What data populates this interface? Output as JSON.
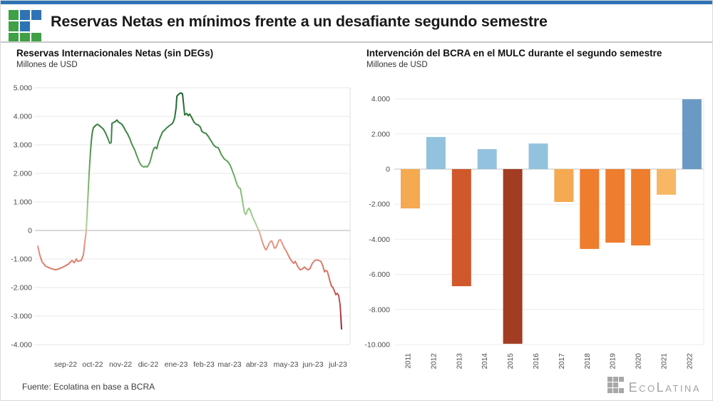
{
  "header": {
    "title": "Reservas Netas en mínimos frente a un desafiante segundo semestre",
    "top_strip_color": "#2E74B5",
    "logo": {
      "green": "#3FA046",
      "blue": "#2E74B5",
      "pattern": [
        [
          "g",
          "b",
          "b"
        ],
        [
          "g",
          "b",
          ""
        ],
        [
          "g",
          "g",
          "g"
        ]
      ]
    }
  },
  "source_note": "Fuente: Ecolatina en base a BCRA",
  "brand": {
    "seg": [
      "E",
      "co",
      "L",
      "atina"
    ],
    "color": "#a3a3a3"
  },
  "chart_data": [
    {
      "type": "line",
      "title": "Reservas Internacionales Netas (sin DEGs)",
      "subtitle": "Millones de USD",
      "ylabel": "Millones de USD",
      "ylim": [
        -4000,
        5000
      ],
      "grid": true,
      "yticks": [
        {
          "v": 5000,
          "label": "5.000"
        },
        {
          "v": 4000,
          "label": "4.000"
        },
        {
          "v": 3000,
          "label": "3.000"
        },
        {
          "v": 2000,
          "label": "2.000"
        },
        {
          "v": 1000,
          "label": "1.000"
        },
        {
          "v": 0,
          "label": "0"
        },
        {
          "v": -1000,
          "label": "-1.000"
        },
        {
          "v": -2000,
          "label": "-2.000"
        },
        {
          "v": -3000,
          "label": "-3.000"
        },
        {
          "v": -4000,
          "label": "-4.000"
        }
      ],
      "xticks": [
        {
          "pos": 39,
          "label": "sep-22"
        },
        {
          "pos": 77,
          "label": "oct-22"
        },
        {
          "pos": 116,
          "label": "nov-22"
        },
        {
          "pos": 155,
          "label": "dic-22"
        },
        {
          "pos": 194,
          "label": "ene-23"
        },
        {
          "pos": 233,
          "label": "feb-23"
        },
        {
          "pos": 269,
          "label": "mar-23"
        },
        {
          "pos": 307,
          "label": "abr-23"
        },
        {
          "pos": 348,
          "label": "may-23"
        },
        {
          "pos": 386,
          "label": "jun-23"
        },
        {
          "pos": 421,
          "label": "jul-23"
        }
      ],
      "axis_length": 426,
      "color_gradient_high_to_low": [
        [
          0.0,
          "#1f6030"
        ],
        [
          0.1,
          "#2e7639"
        ],
        [
          0.22,
          "#47904b"
        ],
        [
          0.34,
          "#6cab63"
        ],
        [
          0.46,
          "#8cc47c"
        ],
        [
          0.55,
          "#a5d18f"
        ],
        [
          0.57,
          "#a8d294"
        ],
        [
          0.59,
          "#e8a898"
        ],
        [
          0.64,
          "#e39384"
        ],
        [
          0.7,
          "#df8372"
        ],
        [
          0.78,
          "#d8705f"
        ],
        [
          0.88,
          "#c04e4e"
        ],
        [
          1.0,
          "#992438"
        ]
      ],
      "points": [
        [
          0,
          -550
        ],
        [
          3,
          -880
        ],
        [
          6,
          -1100
        ],
        [
          11,
          -1250
        ],
        [
          18,
          -1330
        ],
        [
          25,
          -1380
        ],
        [
          31,
          -1330
        ],
        [
          38,
          -1250
        ],
        [
          43,
          -1175
        ],
        [
          48,
          -1050
        ],
        [
          51,
          -1130
        ],
        [
          54,
          -1000
        ],
        [
          56,
          -1080
        ],
        [
          61,
          -1050
        ],
        [
          64,
          -850
        ],
        [
          66,
          -400
        ],
        [
          68,
          0
        ],
        [
          69,
          500
        ],
        [
          70,
          1000
        ],
        [
          71,
          1500
        ],
        [
          72,
          2000
        ],
        [
          73,
          2400
        ],
        [
          74,
          2800
        ],
        [
          75,
          3100
        ],
        [
          76,
          3350
        ],
        [
          77,
          3500
        ],
        [
          78,
          3600
        ],
        [
          80,
          3650
        ],
        [
          82,
          3700
        ],
        [
          84,
          3720
        ],
        [
          86,
          3680
        ],
        [
          89,
          3620
        ],
        [
          92,
          3550
        ],
        [
          95,
          3420
        ],
        [
          97,
          3300
        ],
        [
          99,
          3180
        ],
        [
          101,
          3050
        ],
        [
          103,
          3080
        ],
        [
          104,
          3750
        ],
        [
          106,
          3780
        ],
        [
          109,
          3820
        ],
        [
          111,
          3870
        ],
        [
          113,
          3800
        ],
        [
          115,
          3770
        ],
        [
          118,
          3720
        ],
        [
          121,
          3600
        ],
        [
          123,
          3500
        ],
        [
          126,
          3380
        ],
        [
          129,
          3220
        ],
        [
          132,
          3020
        ],
        [
          134,
          2920
        ],
        [
          136,
          2820
        ],
        [
          138,
          2680
        ],
        [
          140,
          2550
        ],
        [
          142,
          2420
        ],
        [
          144,
          2320
        ],
        [
          146,
          2260
        ],
        [
          149,
          2220
        ],
        [
          151,
          2250
        ],
        [
          153,
          2220
        ],
        [
          155,
          2280
        ],
        [
          157,
          2380
        ],
        [
          159,
          2550
        ],
        [
          161,
          2750
        ],
        [
          163,
          2880
        ],
        [
          165,
          2920
        ],
        [
          167,
          2860
        ],
        [
          169,
          3080
        ],
        [
          172,
          3280
        ],
        [
          175,
          3450
        ],
        [
          178,
          3520
        ],
        [
          181,
          3600
        ],
        [
          184,
          3660
        ],
        [
          186,
          3700
        ],
        [
          188,
          3730
        ],
        [
          190,
          3800
        ],
        [
          192,
          3950
        ],
        [
          194,
          4300
        ],
        [
          195,
          4700
        ],
        [
          197,
          4760
        ],
        [
          199,
          4800
        ],
        [
          201,
          4820
        ],
        [
          203,
          4780
        ],
        [
          205,
          4300
        ],
        [
          206,
          4050
        ],
        [
          209,
          4100
        ],
        [
          211,
          4020
        ],
        [
          213,
          4080
        ],
        [
          216,
          3950
        ],
        [
          219,
          3800
        ],
        [
          222,
          3720
        ],
        [
          225,
          3700
        ],
        [
          228,
          3620
        ],
        [
          230,
          3480
        ],
        [
          233,
          3420
        ],
        [
          236,
          3400
        ],
        [
          239,
          3300
        ],
        [
          242,
          3180
        ],
        [
          244,
          3100
        ],
        [
          247,
          2980
        ],
        [
          250,
          2920
        ],
        [
          253,
          2900
        ],
        [
          255,
          2800
        ],
        [
          257,
          2680
        ],
        [
          259,
          2600
        ],
        [
          261,
          2520
        ],
        [
          264,
          2460
        ],
        [
          267,
          2400
        ],
        [
          270,
          2280
        ],
        [
          272,
          2150
        ],
        [
          274,
          2020
        ],
        [
          276,
          1880
        ],
        [
          278,
          1720
        ],
        [
          280,
          1580
        ],
        [
          282,
          1500
        ],
        [
          284,
          1470
        ],
        [
          286,
          1200
        ],
        [
          288,
          900
        ],
        [
          290,
          620
        ],
        [
          292,
          560
        ],
        [
          294,
          700
        ],
        [
          296,
          780
        ],
        [
          298,
          700
        ],
        [
          300,
          560
        ],
        [
          302,
          430
        ],
        [
          304,
          330
        ],
        [
          306,
          220
        ],
        [
          308,
          100
        ],
        [
          310,
          0
        ],
        [
          312,
          -150
        ],
        [
          314,
          -320
        ],
        [
          316,
          -480
        ],
        [
          318,
          -600
        ],
        [
          320,
          -680
        ],
        [
          322,
          -600
        ],
        [
          324,
          -480
        ],
        [
          326,
          -400
        ],
        [
          328,
          -360
        ],
        [
          330,
          -480
        ],
        [
          332,
          -620
        ],
        [
          334,
          -600
        ],
        [
          336,
          -480
        ],
        [
          338,
          -350
        ],
        [
          340,
          -320
        ],
        [
          342,
          -400
        ],
        [
          344,
          -520
        ],
        [
          346,
          -630
        ],
        [
          348,
          -700
        ],
        [
          351,
          -850
        ],
        [
          354,
          -1000
        ],
        [
          357,
          -1100
        ],
        [
          359,
          -1150
        ],
        [
          361,
          -1080
        ],
        [
          363,
          -1180
        ],
        [
          365,
          -1280
        ],
        [
          368,
          -1380
        ],
        [
          371,
          -1350
        ],
        [
          374,
          -1280
        ],
        [
          376,
          -1330
        ],
        [
          379,
          -1380
        ],
        [
          382,
          -1330
        ],
        [
          385,
          -1150
        ],
        [
          388,
          -1060
        ],
        [
          391,
          -1030
        ],
        [
          394,
          -1050
        ],
        [
          397,
          -1080
        ],
        [
          400,
          -1250
        ],
        [
          402,
          -1450
        ],
        [
          404,
          -1400
        ],
        [
          406,
          -1430
        ],
        [
          408,
          -1600
        ],
        [
          410,
          -1800
        ],
        [
          412,
          -1950
        ],
        [
          414,
          -2000
        ],
        [
          416,
          -2120
        ],
        [
          418,
          -2250
        ],
        [
          420,
          -2200
        ],
        [
          422,
          -2280
        ],
        [
          424,
          -2600
        ],
        [
          425,
          -3000
        ],
        [
          426,
          -3450
        ]
      ]
    },
    {
      "type": "bar",
      "title": "Intervención del BCRA en el MULC durante el segundo semestre",
      "subtitle": "Millones de USD",
      "ylabel": "Millones de USD",
      "ylim": [
        -10000,
        4000
      ],
      "grid": true,
      "yticks": [
        {
          "v": 4000,
          "label": "4.000"
        },
        {
          "v": 2000,
          "label": "2.000"
        },
        {
          "v": 0,
          "label": "0"
        },
        {
          "v": -2000,
          "label": "-2.000"
        },
        {
          "v": -4000,
          "label": "-4.000"
        },
        {
          "v": -6000,
          "label": "-6.000"
        },
        {
          "v": -8000,
          "label": "-8.000"
        },
        {
          "v": -10000,
          "label": "-10.000"
        }
      ],
      "categories": [
        "2011",
        "2012",
        "2013",
        "2014",
        "2015",
        "2016",
        "2017",
        "2018",
        "2019",
        "2020",
        "2021",
        "2022"
      ],
      "values": [
        -2240,
        1830,
        -6670,
        1140,
        -9950,
        1460,
        -1870,
        -4550,
        -4190,
        -4350,
        -1460,
        3980
      ],
      "bar_colors": [
        "#F5A950",
        "#93C2DE",
        "#D0582B",
        "#93C2DE",
        "#A23C22",
        "#93C2DE",
        "#F5A950",
        "#EE7D2E",
        "#EE7D2E",
        "#EE7D2E",
        "#F7B765",
        "#6A9AC4"
      ]
    }
  ]
}
